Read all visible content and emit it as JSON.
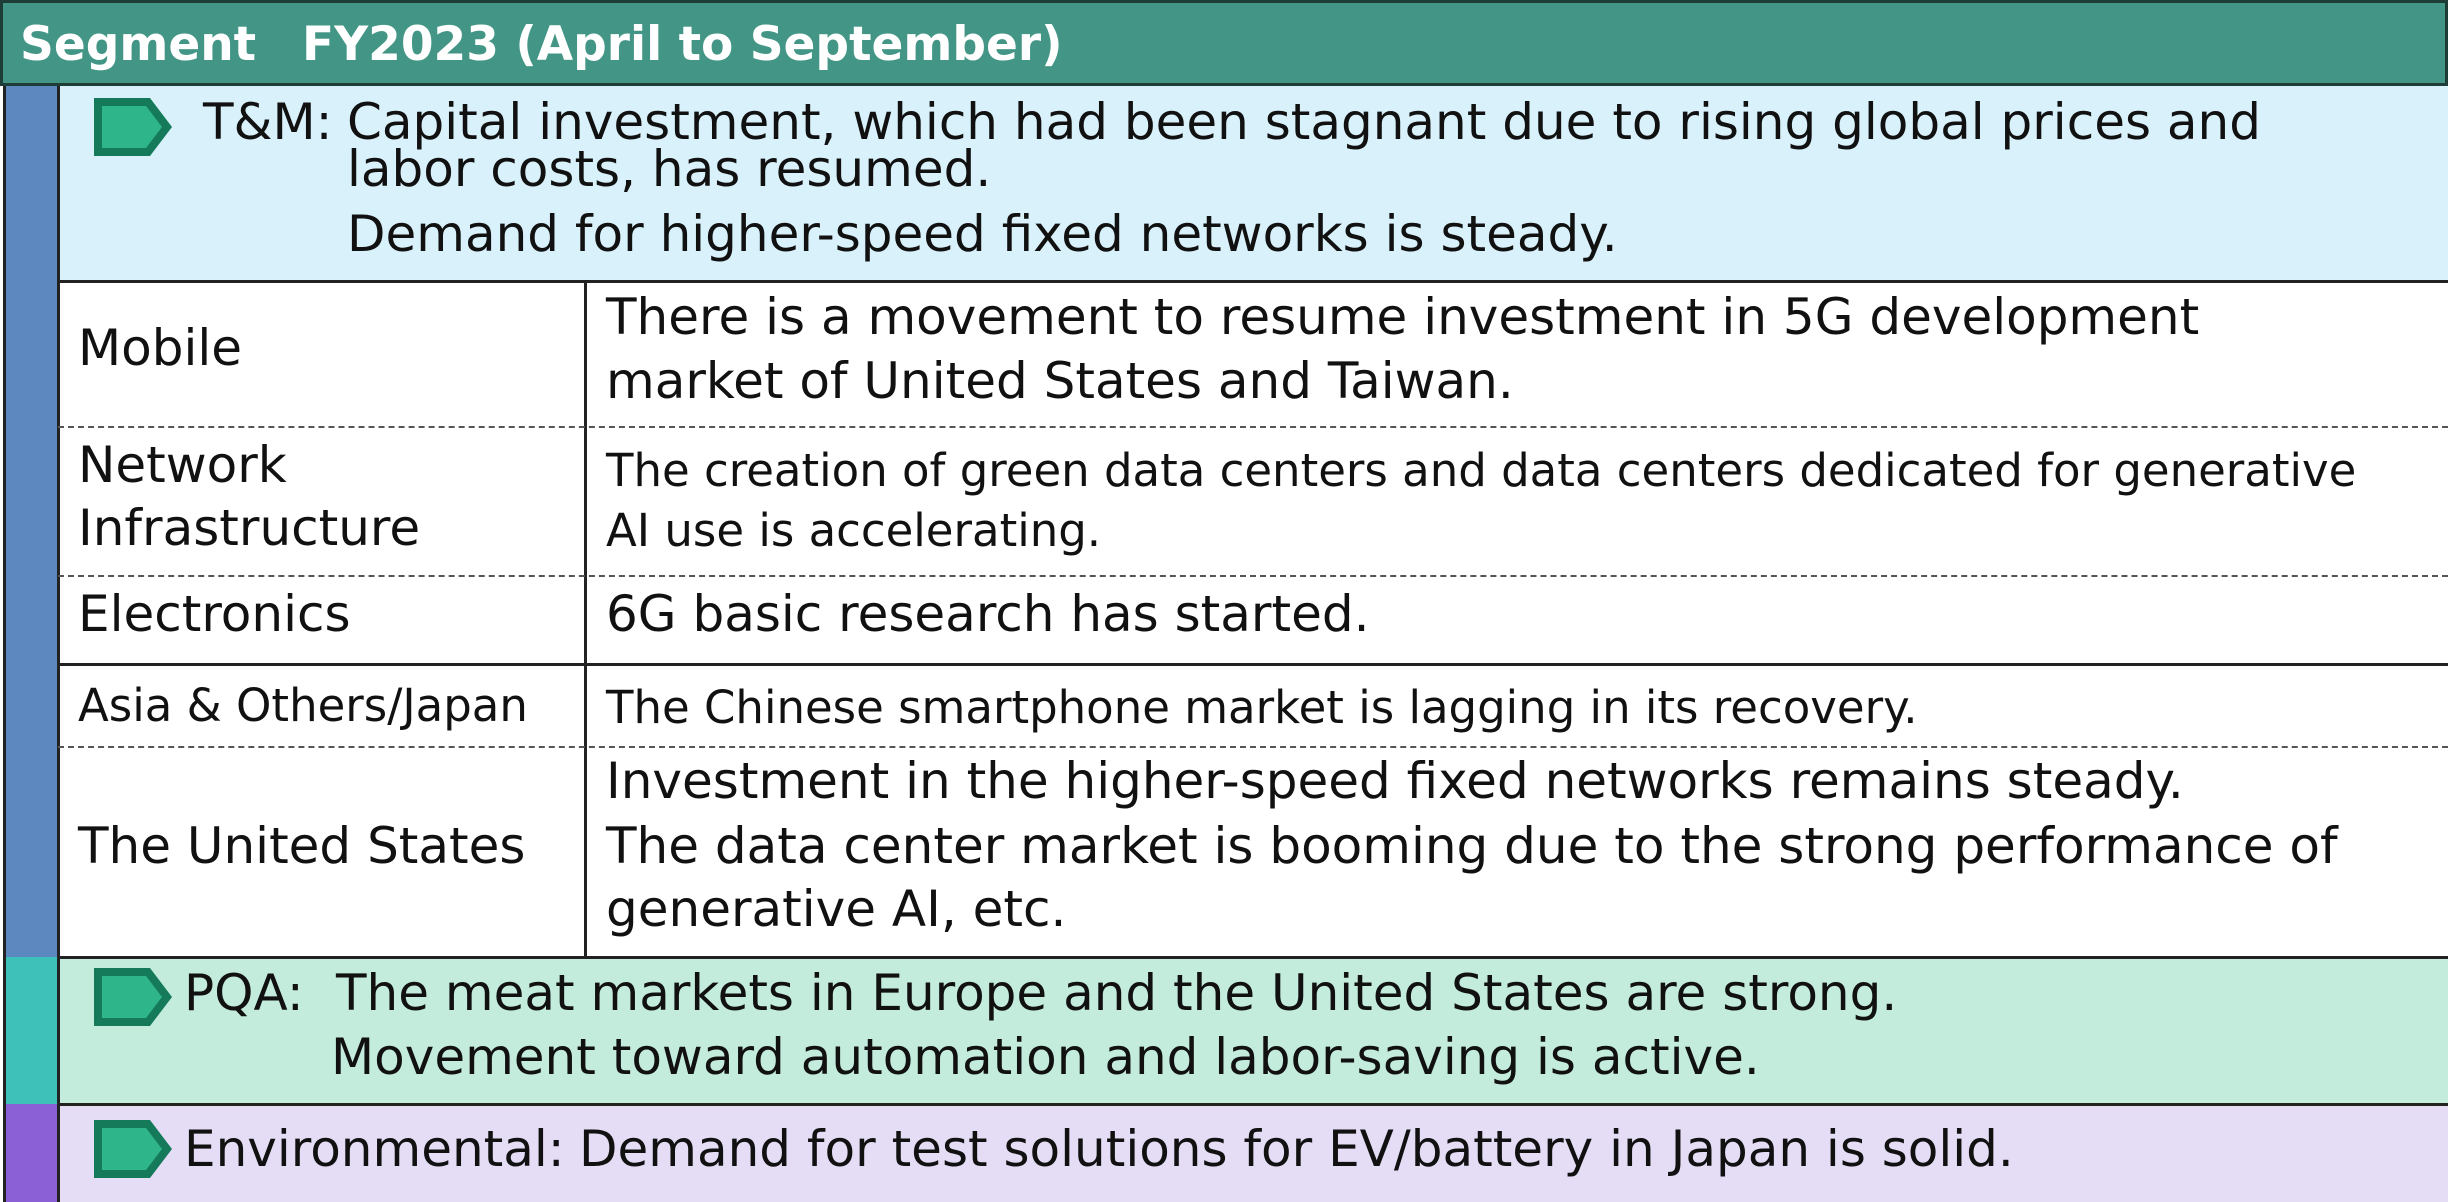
{
  "header": {
    "segment": "Segment",
    "period": "FY2023 (April to September)"
  },
  "tm": {
    "label": "T&M:",
    "lines": [
      "Capital investment, which had been stagnant due to rising global prices and",
      "labor costs, has resumed.",
      "Demand for higher-speed fixed networks is steady."
    ]
  },
  "rows": [
    {
      "segment": [
        "Mobile"
      ],
      "lines": [
        "There is a movement to resume investment in 5G development",
        "market of United States and Taiwan."
      ]
    },
    {
      "segment": [
        "Network",
        "Infrastructure"
      ],
      "lines": [
        "The creation of green data centers and data centers dedicated for generative",
        "AI use is accelerating."
      ]
    },
    {
      "segment": [
        "Electronics"
      ],
      "lines": [
        "6G basic research has started."
      ]
    },
    {
      "segment": [
        "Asia & Others/Japan"
      ],
      "lines": [
        "The Chinese smartphone market is lagging in its recovery."
      ]
    },
    {
      "segment": [
        "The United States"
      ],
      "lines": [
        "Investment in the higher-speed fixed networks remains steady.",
        "The data center market is booming due to the strong performance of",
        "generative AI, etc."
      ]
    }
  ],
  "pqa": {
    "label": "PQA:",
    "lines": [
      "The meat markets in Europe and the United States are strong.",
      "Movement toward automation and labor-saving is active."
    ]
  },
  "env": {
    "label": "Environmental:",
    "text": "Demand for test solutions for EV/battery in Japan is solid."
  }
}
